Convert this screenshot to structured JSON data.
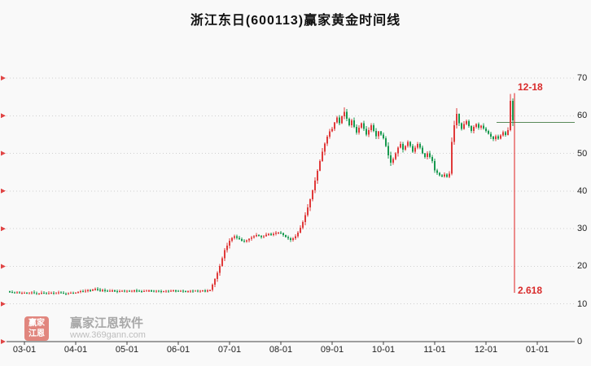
{
  "title": "浙江东日(600113)赢家黄金时间线",
  "axes": {
    "y_ticks": [
      "0",
      "10",
      "20",
      "30",
      "40",
      "50",
      "60",
      "70"
    ],
    "x_ticks": [
      "03-01",
      "04-01",
      "05-01",
      "06-01",
      "07-01",
      "08-01",
      "09-01",
      "10-01",
      "11-01",
      "12-01",
      "01-01"
    ]
  },
  "annotations": {
    "date_label": "12-18",
    "fib_label": "2.618"
  },
  "watermark": {
    "logo_line1": "赢家",
    "logo_line2": "江恩",
    "name": "赢家江恩软件",
    "url": "www.369gann.com"
  },
  "colors": {
    "up": "#e03a3a",
    "down": "#18994f",
    "grid": "#d0d0d0",
    "axis": "#444444",
    "hline": "#5a8a5a",
    "vline": "#e02020",
    "arrow": "#e04545",
    "annotation": "#d92b2b"
  },
  "chart_data": {
    "type": "candlestick",
    "title": "浙江东日(600113)赢家黄金时间线",
    "stock_name": "浙江东日",
    "stock_code": "600113",
    "ylim": [
      0,
      70
    ],
    "y_ticks": [
      0,
      10,
      20,
      30,
      40,
      50,
      60,
      70
    ],
    "x_tick_labels": [
      "03-01",
      "04-01",
      "05-01",
      "06-01",
      "07-01",
      "08-01",
      "09-01",
      "10-01",
      "11-01",
      "12-01",
      "01-01"
    ],
    "month_tick_indices": [
      6,
      27,
      48,
      69,
      90,
      111,
      132,
      153,
      174,
      195,
      216
    ],
    "closes": [
      13.2,
      13.1,
      13.0,
      13.1,
      12.9,
      13.0,
      13.0,
      12.8,
      12.9,
      13.1,
      12.9,
      12.7,
      12.8,
      13.0,
      12.9,
      12.7,
      12.9,
      13.0,
      12.8,
      12.9,
      13.1,
      13.0,
      12.8,
      12.7,
      12.9,
      13.0,
      12.9,
      13.0,
      13.2,
      13.4,
      13.3,
      13.5,
      13.7,
      13.6,
      13.8,
      14.0,
      13.8,
      13.6,
      13.7,
      13.5,
      13.4,
      13.5,
      13.6,
      13.4,
      13.3,
      13.4,
      13.5,
      13.4,
      13.5,
      13.4,
      13.5,
      13.6,
      13.5,
      13.4,
      13.3,
      13.4,
      13.5,
      13.6,
      13.5,
      13.4,
      13.5,
      13.4,
      13.3,
      13.4,
      13.5,
      13.4,
      13.5,
      13.6,
      13.5,
      13.4,
      13.5,
      13.4,
      13.3,
      13.4,
      13.5,
      13.4,
      13.5,
      13.4,
      13.5,
      13.6,
      13.5,
      13.6,
      13.7,
      15.1,
      16.6,
      18.3,
      20.1,
      22.1,
      24.3,
      25.5,
      26.8,
      27.5,
      28.0,
      27.6,
      27.2,
      26.8,
      26.6,
      26.9,
      27.3,
      27.7,
      28.0,
      28.3,
      28.1,
      27.8,
      28.0,
      28.4,
      28.6,
      28.3,
      28.6,
      28.9,
      29.0,
      28.8,
      28.3,
      27.8,
      27.4,
      27.0,
      27.4,
      28.0,
      29.0,
      30.2,
      31.8,
      33.6,
      35.6,
      37.8,
      40.2,
      42.8,
      45.4,
      48.0,
      50.4,
      52.6,
      54.4,
      55.8,
      56.5,
      58.2,
      59.5,
      58.0,
      59.8,
      61.0,
      59.2,
      57.5,
      58.8,
      57.0,
      55.5,
      56.8,
      58.0,
      56.5,
      55.0,
      56.2,
      57.5,
      56.0,
      54.5,
      55.8,
      55.0,
      54.0,
      52.0,
      49.5,
      47.5,
      48.5,
      50.0,
      51.5,
      52.5,
      51.0,
      52.0,
      53.0,
      52.0,
      50.5,
      51.5,
      52.5,
      51.5,
      50.0,
      49.0,
      50.0,
      49.0,
      48.0,
      45.5,
      44.8,
      44.2,
      43.9,
      44.4,
      43.8,
      44.6,
      53.0,
      57.5,
      60.5,
      58.0,
      56.5,
      57.8,
      58.5,
      57.2,
      56.0,
      57.0,
      57.8,
      56.8,
      57.4,
      56.6,
      56.0,
      55.2,
      54.4,
      53.8,
      54.6,
      53.9,
      54.8,
      55.6,
      54.9,
      56.2,
      64.0,
      58.8
    ],
    "wick_overrides": {
      "137": {
        "h": 62.2
      },
      "181": {
        "l": 44.2
      },
      "183": {
        "h": 62.0
      },
      "205": {
        "h": 65.8,
        "l": 55.8
      },
      "206": {
        "h": 64.6,
        "l": 57.2
      }
    },
    "horizontal_line_value": 58.2,
    "vertical_line": {
      "candle_index": 206,
      "top_value": 66.0,
      "bottom_value": 13.0,
      "date": "12-18",
      "ratio": "2.618"
    }
  }
}
